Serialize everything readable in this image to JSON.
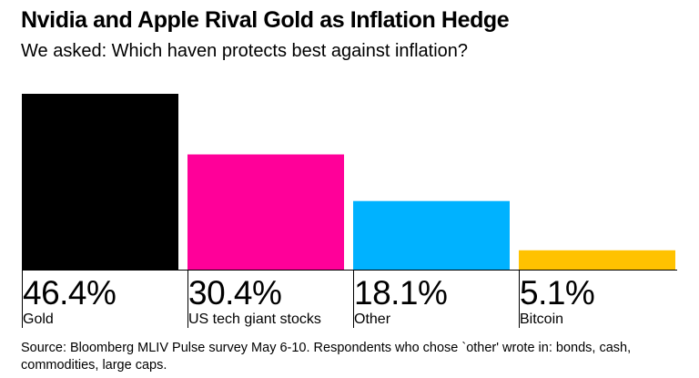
{
  "title": "Nvidia and Apple Rival Gold as Inflation Hedge",
  "subtitle": "We asked: Which haven protects best against inflation?",
  "source": "Source: Bloomberg MLIV Pulse survey May 6-10. Respondents who chose `other' wrote in: bonds, cash, commodities, large caps.",
  "chart_data": {
    "type": "bar",
    "categories": [
      "Gold",
      "US tech giant stocks",
      "Other",
      "Bitcoin"
    ],
    "values": [
      46.4,
      30.4,
      18.1,
      5.1
    ],
    "value_labels": [
      "46.4%",
      "30.4%",
      "18.1%",
      "5.1%"
    ],
    "colors": [
      "#000000",
      "#ff0099",
      "#00b2ff",
      "#ffc200"
    ],
    "ylim": [
      0,
      46.4
    ],
    "grid": false,
    "legend": "none"
  }
}
